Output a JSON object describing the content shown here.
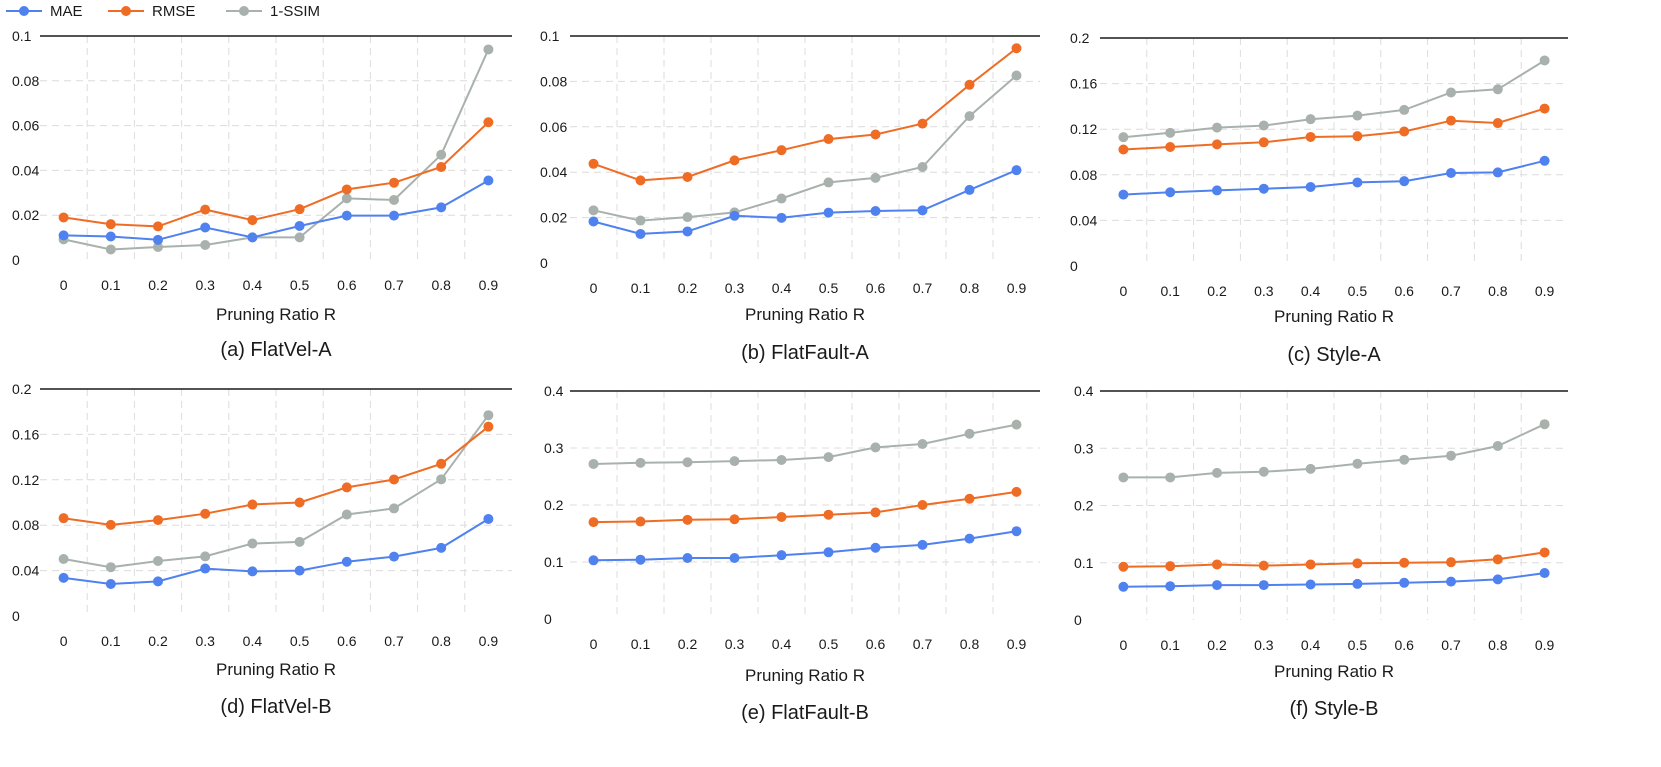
{
  "legend": {
    "placement": "top-left",
    "items": [
      {
        "label": "MAE",
        "color": "#4f81ef"
      },
      {
        "label": "RMSE",
        "color": "#ef6c25"
      },
      {
        "label": "1-SSIM",
        "color": "#a9b1ad"
      }
    ]
  },
  "chart_data": [
    {
      "type": "line",
      "title": "(a) FlatVel-A",
      "xlabel": "Pruning Ratio R",
      "ylabel": "",
      "x": [
        "0",
        "0.1",
        "0.2",
        "0.3",
        "0.4",
        "0.5",
        "0.6",
        "0.7",
        "0.8",
        "0.9"
      ],
      "yticks": [
        "0",
        "0.02",
        "0.04",
        "0.06",
        "0.08",
        "0.1"
      ],
      "ylim": [
        0,
        0.1
      ],
      "grid": true,
      "series": [
        {
          "name": "MAE",
          "values": [
            0.011,
            0.0105,
            0.009,
            0.0145,
            0.0101,
            0.0152,
            0.0198,
            0.0198,
            0.0235,
            0.0355
          ]
        },
        {
          "name": "RMSE",
          "values": [
            0.019,
            0.016,
            0.015,
            0.0225,
            0.0178,
            0.0227,
            0.0315,
            0.0345,
            0.0415,
            0.0615
          ]
        },
        {
          "name": "1-SSIM",
          "values": [
            0.0092,
            0.0047,
            0.0058,
            0.0067,
            0.0101,
            0.0101,
            0.0275,
            0.0268,
            0.047,
            0.094
          ]
        }
      ]
    },
    {
      "type": "line",
      "title": "(b) FlatFault-A",
      "xlabel": "Pruning Ratio R",
      "ylabel": "",
      "x": [
        "0",
        "0.1",
        "0.2",
        "0.3",
        "0.4",
        "0.5",
        "0.6",
        "0.7",
        "0.8",
        "0.9"
      ],
      "yticks": [
        "0",
        "0.02",
        "0.04",
        "0.06",
        "0.08",
        "0.1"
      ],
      "ylim": [
        0,
        0.1
      ],
      "grid": true,
      "series": [
        {
          "name": "MAE",
          "values": [
            0.0183,
            0.0128,
            0.0139,
            0.0208,
            0.0199,
            0.0222,
            0.0229,
            0.0232,
            0.0322,
            0.0409
          ]
        },
        {
          "name": "RMSE",
          "values": [
            0.0437,
            0.0364,
            0.0379,
            0.0452,
            0.0497,
            0.0546,
            0.0566,
            0.0614,
            0.0785,
            0.0946
          ]
        },
        {
          "name": "1-SSIM",
          "values": [
            0.0232,
            0.0187,
            0.0202,
            0.0223,
            0.0284,
            0.0355,
            0.0375,
            0.0423,
            0.0647,
            0.0826
          ]
        }
      ]
    },
    {
      "type": "line",
      "title": "(c) Style-A",
      "xlabel": "Pruning Ratio R",
      "ylabel": "",
      "x": [
        "0",
        "0.1",
        "0.2",
        "0.3",
        "0.4",
        "0.5",
        "0.6",
        "0.7",
        "0.8",
        "0.9"
      ],
      "yticks": [
        "0",
        "0.04",
        "0.08",
        "0.12",
        "0.16",
        "0.2"
      ],
      "ylim": [
        0,
        0.2
      ],
      "grid": true,
      "series": [
        {
          "name": "MAE",
          "values": [
            0.0626,
            0.0647,
            0.0663,
            0.0678,
            0.0693,
            0.0733,
            0.0744,
            0.0816,
            0.0821,
            0.0923
          ]
        },
        {
          "name": "RMSE",
          "values": [
            0.1022,
            0.1044,
            0.1067,
            0.1085,
            0.1132,
            0.1139,
            0.118,
            0.1275,
            0.1254,
            0.1381
          ]
        },
        {
          "name": "1-SSIM",
          "values": [
            0.113,
            0.1168,
            0.1214,
            0.1232,
            0.1288,
            0.1319,
            0.1369,
            0.1522,
            0.155,
            0.1803
          ]
        }
      ]
    },
    {
      "type": "line",
      "title": "(d) FlatVel-B",
      "xlabel": "Pruning Ratio R",
      "ylabel": "",
      "x": [
        "0",
        "0.1",
        "0.2",
        "0.3",
        "0.4",
        "0.5",
        "0.6",
        "0.7",
        "0.8",
        "0.9"
      ],
      "yticks": [
        "0",
        "0.04",
        "0.08",
        "0.12",
        "0.16",
        "0.2"
      ],
      "ylim": [
        0,
        0.2
      ],
      "grid": true,
      "series": [
        {
          "name": "MAE",
          "values": [
            0.0336,
            0.0282,
            0.0305,
            0.0418,
            0.0393,
            0.04,
            0.0478,
            0.0523,
            0.06,
            0.0855
          ]
        },
        {
          "name": "RMSE",
          "values": [
            0.0862,
            0.0803,
            0.0845,
            0.0901,
            0.0982,
            0.1,
            0.1133,
            0.1203,
            0.1341,
            0.1668
          ]
        },
        {
          "name": "1-SSIM",
          "values": [
            0.0502,
            0.043,
            0.0485,
            0.0525,
            0.0639,
            0.0653,
            0.0894,
            0.0948,
            0.1204,
            0.1769
          ]
        }
      ]
    },
    {
      "type": "line",
      "title": "(e) FlatFault-B",
      "xlabel": "Pruning Ratio  R",
      "ylabel": "",
      "x": [
        "0",
        "0.1",
        "0.2",
        "0.3",
        "0.4",
        "0.5",
        "0.6",
        "0.7",
        "0.8",
        "0.9"
      ],
      "yticks": [
        "0",
        "0.1",
        "0.2",
        "0.3",
        "0.4"
      ],
      "ylim": [
        0,
        0.4
      ],
      "grid": true,
      "series": [
        {
          "name": "MAE",
          "values": [
            0.103,
            0.104,
            0.107,
            0.107,
            0.112,
            0.117,
            0.125,
            0.13,
            0.141,
            0.154
          ]
        },
        {
          "name": "RMSE",
          "values": [
            0.17,
            0.171,
            0.174,
            0.175,
            0.179,
            0.183,
            0.187,
            0.2,
            0.211,
            0.223
          ]
        },
        {
          "name": "1-SSIM",
          "values": [
            0.272,
            0.274,
            0.275,
            0.277,
            0.279,
            0.284,
            0.301,
            0.307,
            0.325,
            0.341
          ]
        }
      ]
    },
    {
      "type": "line",
      "title": "(f) Style-B",
      "xlabel": "Pruning Ratio  R",
      "ylabel": "",
      "x": [
        "0",
        "0.1",
        "0.2",
        "0.3",
        "0.4",
        "0.5",
        "0.6",
        "0.7",
        "0.8",
        "0.9"
      ],
      "yticks": [
        "0",
        "0.1",
        "0.2",
        "0.3",
        "0.4"
      ],
      "ylim": [
        0,
        0.4
      ],
      "grid": true,
      "series": [
        {
          "name": "MAE",
          "values": [
            0.058,
            0.059,
            0.061,
            0.061,
            0.062,
            0.063,
            0.065,
            0.067,
            0.071,
            0.082
          ]
        },
        {
          "name": "RMSE",
          "values": [
            0.093,
            0.094,
            0.097,
            0.095,
            0.097,
            0.099,
            0.1,
            0.101,
            0.106,
            0.118
          ]
        },
        {
          "name": "1-SSIM",
          "values": [
            0.249,
            0.249,
            0.257,
            0.259,
            0.264,
            0.273,
            0.28,
            0.287,
            0.304,
            0.342
          ]
        }
      ]
    }
  ]
}
